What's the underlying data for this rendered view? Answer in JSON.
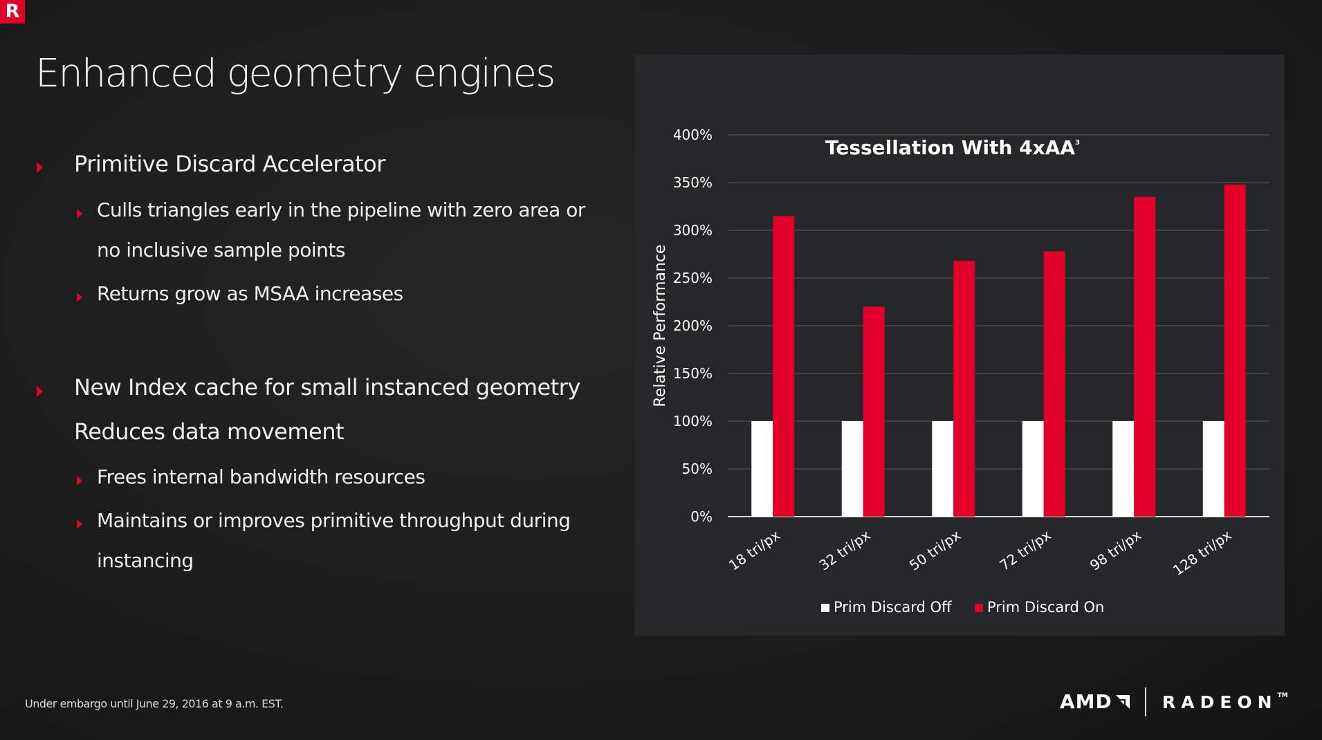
{
  "slide": {
    "title": "Enhanced geometry engines",
    "bullets": {
      "b1": "Primitive Discard Accelerator",
      "b1a_line1": "Culls triangles early in the pipeline with zero area or",
      "b1a_line2": "no inclusive sample points",
      "b1b": "Returns grow as MSAA increases",
      "b2": "New Index cache for small instanced geometry",
      "b2_line2": "Reduces data movement",
      "b2a": "Frees internal bandwidth resources",
      "b2b_line1": "Maintains or  improves primitive throughput during",
      "b2b_line2": "instancing"
    },
    "footer": "Under embargo until June 29, 2016 at  9 a.m. EST.",
    "brand_amd": "AMD",
    "brand_radeon": "RADEON",
    "brand_tm": "TM",
    "logo_letter": "R"
  },
  "colors": {
    "accent": "#e0002a",
    "off": "#ffffff",
    "panel": "#262729"
  },
  "chart_data": {
    "type": "bar",
    "title": "Tessellation With 4xAA",
    "title_superscript": "3",
    "ylabel": "Relative Performance",
    "xlabel": "",
    "ylim": [
      0,
      400
    ],
    "yticks": [
      "0%",
      "50%",
      "100%",
      "150%",
      "200%",
      "250%",
      "300%",
      "350%",
      "400%"
    ],
    "ytick_values": [
      0,
      50,
      100,
      150,
      200,
      250,
      300,
      350,
      400
    ],
    "categories": [
      "18 tri/px",
      "32 tri/px",
      "50 tri/px",
      "72 tri/px",
      "98 tri/px",
      "128 tri/px"
    ],
    "series": [
      {
        "name": "Prim Discard Off",
        "color": "#ffffff",
        "values": [
          100,
          100,
          100,
          100,
          100,
          100
        ]
      },
      {
        "name": "Prim Discard On",
        "color": "#e0002a",
        "values": [
          315,
          220,
          268,
          278,
          335,
          348
        ]
      }
    ],
    "grid": true,
    "legend": "bottom"
  }
}
